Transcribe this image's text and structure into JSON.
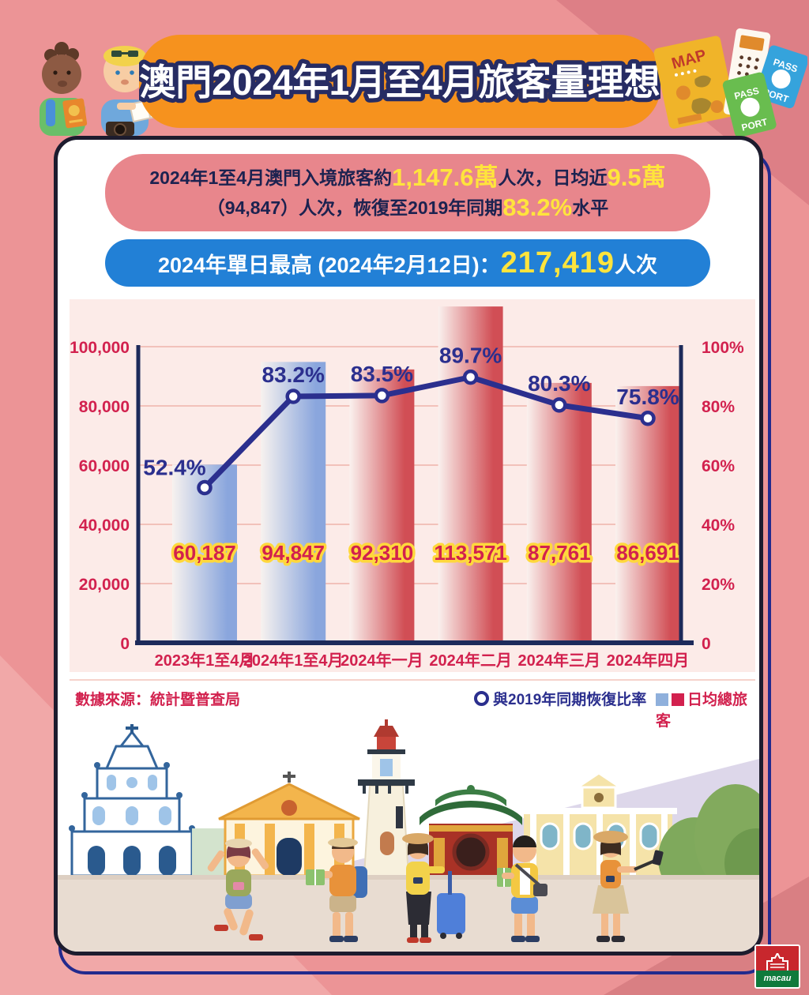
{
  "header": {
    "title": "澳門2024年1月至4月旅客量理想"
  },
  "header_art": {
    "map_label": "MAP",
    "passport_word_top": "PASS",
    "passport_word_bottom": "PORT"
  },
  "summary": {
    "part1": "2024年1至4月澳門入境旅客約",
    "value1": "1,147.6萬",
    "part2": "人次，日均近",
    "value2": "9.5萬",
    "part3": "（94,847）人次，恢復至2019年同期",
    "value3": "83.2%",
    "part4": "水平"
  },
  "daily_peak": {
    "label": "2024年單日最高 (2024年2月12日)：",
    "value": "217,419",
    "unit": "人次"
  },
  "chart_data": {
    "type": "bar+line",
    "title": "",
    "categories": [
      "2023年1至4月",
      "2024年1至4月",
      "2024年一月",
      "2024年二月",
      "2024年三月",
      "2024年四月"
    ],
    "series": [
      {
        "name": "日均總旅客",
        "type": "bar",
        "axis": "left",
        "values": [
          60187,
          94847,
          92310,
          113571,
          87761,
          86691
        ],
        "labels": [
          "60,187",
          "94,847",
          "92,310",
          "113,571",
          "87,761",
          "86,691"
        ],
        "colors": [
          "blue",
          "blue",
          "red",
          "red",
          "red",
          "red"
        ]
      },
      {
        "name": "與2019年同期恢復比率",
        "type": "line",
        "axis": "right",
        "values": [
          52.4,
          83.2,
          83.5,
          89.7,
          80.3,
          75.8
        ],
        "labels": [
          "52.4%",
          "83.2%",
          "83.5%",
          "89.7%",
          "80.3%",
          "75.8%"
        ]
      }
    ],
    "left_axis": {
      "min": 0,
      "max": 100000,
      "tick_values": [
        100000,
        80000,
        60000,
        40000,
        20000,
        0
      ],
      "tick_labels": [
        "100,000",
        "80,000",
        "60,000",
        "40,000",
        "20,000",
        "0"
      ]
    },
    "right_axis": {
      "min": 0,
      "max": 100,
      "tick_values": [
        100,
        80,
        60,
        40,
        20,
        0
      ],
      "tick_labels": [
        "100%",
        "80%",
        "60%",
        "40%",
        "20%",
        "0"
      ]
    },
    "grid": true,
    "legend_position": "bottom-right",
    "palette": {
      "bar_blue": "#8aa6dd",
      "bar_blue_light": "#f7f2ef",
      "bar_red": "#d14e55",
      "bar_red_light": "#faf1ee",
      "line": "#2b2f8e",
      "axis": "#1d2a5a",
      "gridline": "#f2c1ba",
      "tick_text": "#d2214e",
      "value_text": "#d2214e",
      "value_stroke": "#ffd83c",
      "point_text": "#2b2f8e"
    }
  },
  "footer": {
    "source": "數據來源：統計暨普查局",
    "legend_line_label": "與2019年同期恢復比率",
    "legend_bar_label": "日均總旅客",
    "legend_bar_blue": "#8fb0dc",
    "legend_bar_red": "#d2214e"
  },
  "logo": {
    "text": "macau"
  },
  "colors": {
    "background": "#ec9496",
    "banner_orange": "#f6921e",
    "pill_pink": "#e8868c",
    "pill_blue": "#2280d6",
    "highlight_yellow": "#ffe43c",
    "crimson": "#d2214e",
    "navy": "#2b2f8e",
    "panel_border": "#1d1c2e",
    "chart_bg": "#fcebe8"
  }
}
